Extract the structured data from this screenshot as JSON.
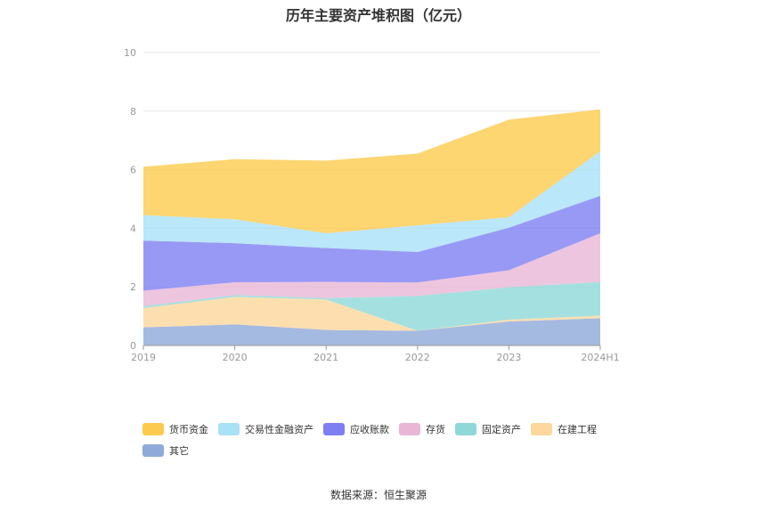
{
  "chart_data": {
    "type": "area",
    "stacked": true,
    "title": "历年主要资产堆积图（亿元）",
    "categories": [
      "2019",
      "2020",
      "2021",
      "2022",
      "2023",
      "2024H1"
    ],
    "ylim": [
      0,
      10
    ],
    "yticks": [
      0,
      2,
      4,
      6,
      8,
      10
    ],
    "grid": true,
    "legend_position": "bottom",
    "series": [
      {
        "name": "其它",
        "color": "#8fa9d9",
        "values": [
          0.62,
          0.72,
          0.53,
          0.5,
          0.82,
          0.93
        ]
      },
      {
        "name": "在建工程",
        "color": "#fdd79b",
        "values": [
          0.66,
          0.94,
          1.04,
          0.0,
          0.06,
          0.09
        ]
      },
      {
        "name": "固定资产",
        "color": "#8ed8d8",
        "values": [
          0.06,
          0.06,
          0.05,
          1.19,
          1.11,
          1.15
        ]
      },
      {
        "name": "存货",
        "color": "#eab6d6",
        "values": [
          0.53,
          0.44,
          0.55,
          0.46,
          0.58,
          1.66
        ]
      },
      {
        "name": "应收账款",
        "color": "#7e7ff2",
        "values": [
          1.71,
          1.33,
          1.16,
          1.04,
          1.45,
          1.28
        ]
      },
      {
        "name": "交易性金融资产",
        "color": "#a9e1f7",
        "values": [
          0.87,
          0.82,
          0.5,
          0.91,
          0.36,
          1.52
        ]
      },
      {
        "name": "货币资金",
        "color": "#fccb4e",
        "values": [
          1.65,
          2.05,
          2.48,
          2.45,
          3.33,
          1.43
        ]
      }
    ],
    "legend_order": [
      "货币资金",
      "交易性金融资产",
      "应收账款",
      "存货",
      "固定资产",
      "在建工程",
      "其它"
    ]
  },
  "source_note": "数据来源：恒生聚源"
}
